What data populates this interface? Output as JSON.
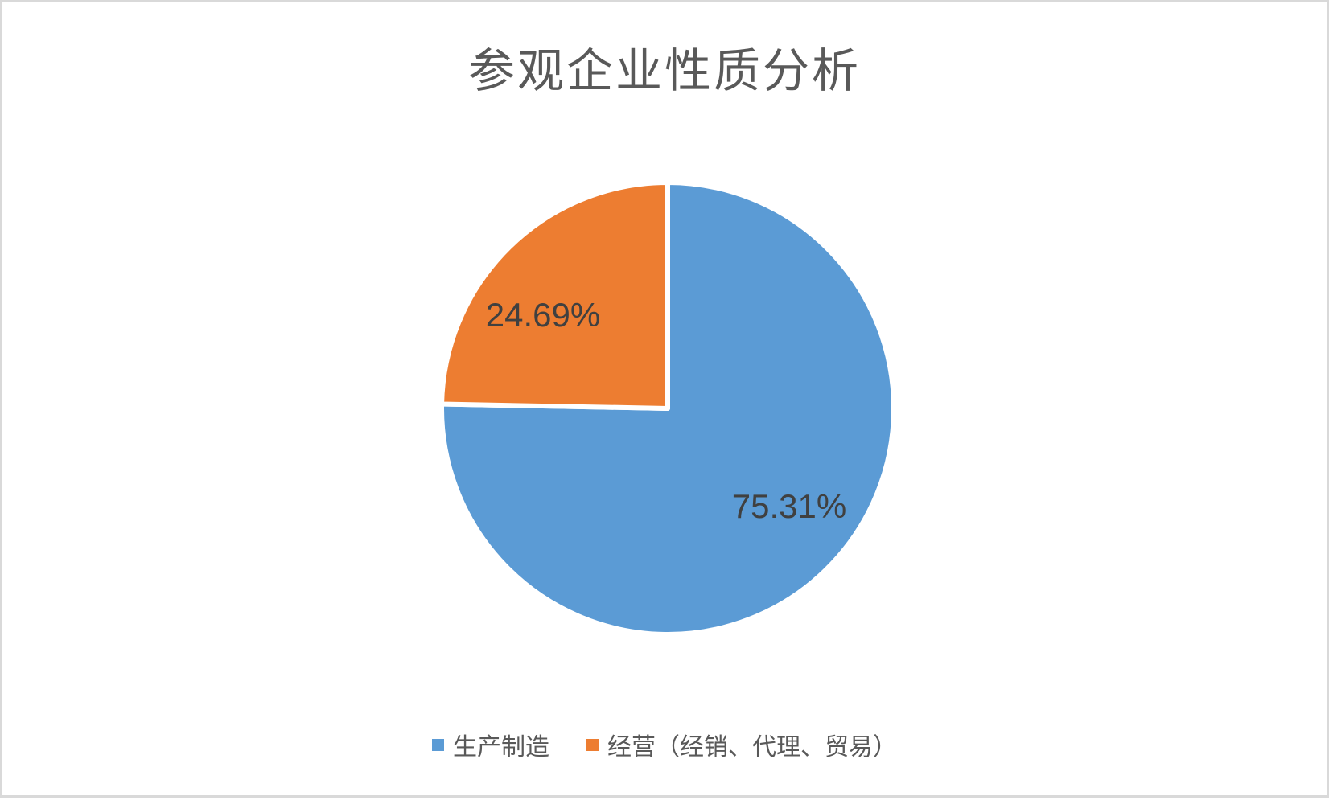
{
  "page": {
    "background_color": "#ffffff",
    "border_color": "#d9d9d9"
  },
  "chart_data": {
    "type": "pie",
    "title": "参观企业性质分析",
    "categories": [
      "生产制造",
      "经营（经销、代理、贸易）"
    ],
    "values": [
      75.31,
      24.69
    ],
    "data_labels": [
      "75.31%",
      "24.69%"
    ],
    "colors": [
      "#5B9BD5",
      "#ED7D31"
    ],
    "slice_border_color": "#ffffff",
    "title_color": "#595959",
    "data_label_color": "#404040",
    "legend_text_color": "#595959",
    "legend_position": "bottom",
    "start_angle_deg": 0,
    "direction": "clockwise"
  }
}
